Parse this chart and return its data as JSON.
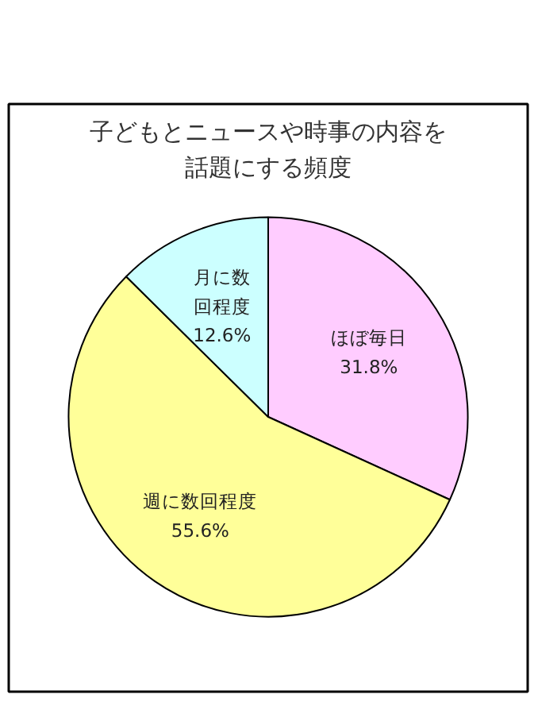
{
  "chart_data": {
    "type": "pie",
    "title": "子どもとニュースや時事の内容を話題にする頻度",
    "categories": [
      "ほぼ毎日",
      "週に数回程度",
      "月に数回程度"
    ],
    "values": [
      31.8,
      55.6,
      12.6
    ],
    "value_labels": [
      "31.8%",
      "55.6%",
      "12.6%"
    ],
    "colors": [
      "#ffccff",
      "#ffff99",
      "#ccffff"
    ]
  }
}
